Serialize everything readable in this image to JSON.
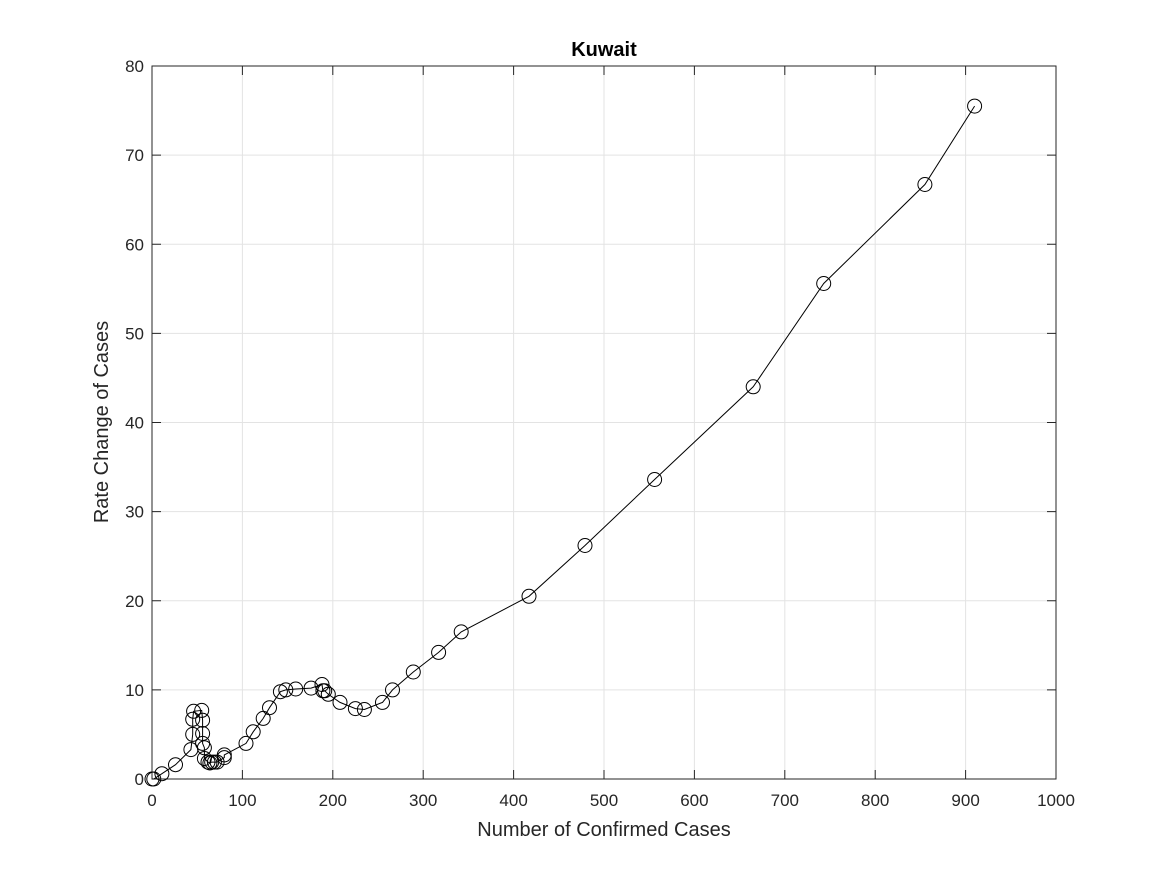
{
  "chart_data": {
    "type": "line",
    "title": "Kuwait",
    "xlabel": "Number of Confirmed Cases",
    "ylabel": "Rate Change of Cases",
    "xlim": [
      0,
      1000
    ],
    "ylim": [
      0,
      80
    ],
    "xticks": [
      "0",
      "100",
      "200",
      "300",
      "400",
      "500",
      "600",
      "700",
      "800",
      "900",
      "1000"
    ],
    "yticks": [
      "0",
      "10",
      "20",
      "30",
      "40",
      "50",
      "60",
      "70",
      "80"
    ],
    "grid": true,
    "marker": "circle",
    "line_color": "#000000",
    "series": [
      {
        "x": [
          0,
          2,
          11,
          26,
          43,
          45,
          45,
          46,
          55,
          56,
          56,
          56,
          58,
          58,
          62,
          64,
          66,
          69,
          72,
          80,
          80,
          104,
          112,
          123,
          130,
          142,
          148,
          159,
          176,
          188,
          189,
          191,
          195,
          208,
          225,
          235,
          255,
          266,
          289,
          317,
          342,
          417,
          479,
          556,
          665,
          743,
          855,
          910
        ],
        "y": [
          0,
          0,
          0.6,
          1.6,
          3.3,
          5.0,
          6.7,
          7.6,
          7.7,
          6.6,
          5.1,
          4.0,
          3.5,
          2.3,
          1.9,
          1.8,
          1.9,
          1.9,
          1.9,
          2.4,
          2.7,
          4.0,
          5.3,
          6.8,
          8.0,
          9.8,
          10.0,
          10.1,
          10.2,
          10.6,
          9.9,
          9.9,
          9.5,
          8.6,
          7.9,
          7.8,
          8.6,
          10.0,
          12.0,
          14.2,
          16.5,
          20.5,
          26.2,
          33.6,
          44.0,
          55.6,
          66.7,
          75.5
        ]
      }
    ]
  }
}
